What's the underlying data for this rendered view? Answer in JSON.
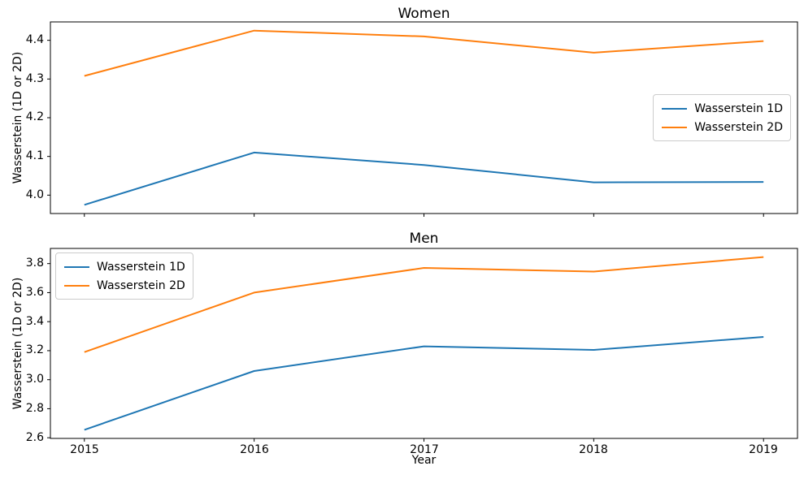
{
  "figure": {
    "background": "#ffffff",
    "axis_color": "#000000",
    "legend_border_color": "#cccccc"
  },
  "chart_data": [
    {
      "type": "line",
      "title": "Women",
      "xlabel": "",
      "ylabel": "Wasserstein (1D or 2D)",
      "x": [
        2015,
        2016,
        2017,
        2018,
        2019
      ],
      "x_tick_labels": [
        "2015",
        "2016",
        "2017",
        "2018",
        "2019"
      ],
      "show_x_tick_labels": false,
      "xlim": [
        2014.8,
        2019.2
      ],
      "ylim": [
        3.9525,
        4.4475
      ],
      "yticks": [
        4.0,
        4.1,
        4.2,
        4.3,
        4.4
      ],
      "ytick_labels": [
        "4.0",
        "4.1",
        "4.2",
        "4.3",
        "4.4"
      ],
      "grid": false,
      "legend_position": "center-right",
      "series": [
        {
          "name": "Wasserstein 1D",
          "color": "#1f77b4",
          "values": [
            3.975,
            4.11,
            4.078,
            4.033,
            4.034
          ]
        },
        {
          "name": "Wasserstein 2D",
          "color": "#ff7f0e",
          "values": [
            4.308,
            4.425,
            4.41,
            4.368,
            4.398
          ]
        }
      ]
    },
    {
      "type": "line",
      "title": "Men",
      "xlabel": "Year",
      "ylabel": "Wasserstein (1D or 2D)",
      "x": [
        2015,
        2016,
        2017,
        2018,
        2019
      ],
      "x_tick_labels": [
        "2015",
        "2016",
        "2017",
        "2018",
        "2019"
      ],
      "show_x_tick_labels": true,
      "xlim": [
        2014.8,
        2019.2
      ],
      "ylim": [
        2.5955,
        3.9045
      ],
      "yticks": [
        2.6,
        2.8,
        3.0,
        3.2,
        3.4,
        3.6,
        3.8
      ],
      "ytick_labels": [
        "2.6",
        "2.8",
        "3.0",
        "3.2",
        "3.4",
        "3.6",
        "3.8"
      ],
      "grid": false,
      "legend_position": "upper-left",
      "series": [
        {
          "name": "Wasserstein 1D",
          "color": "#1f77b4",
          "values": [
            2.655,
            3.06,
            3.23,
            3.205,
            3.295
          ]
        },
        {
          "name": "Wasserstein 2D",
          "color": "#ff7f0e",
          "values": [
            3.19,
            3.6,
            3.77,
            3.745,
            3.845
          ]
        }
      ]
    }
  ]
}
